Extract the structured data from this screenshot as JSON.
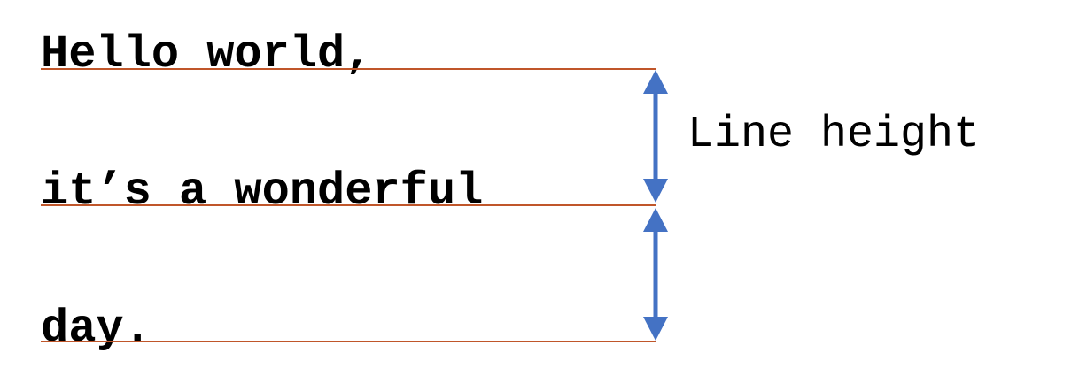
{
  "text_lines": [
    "Hello world,",
    "it’s a wonderful",
    "day."
  ],
  "measure_label": "Line height",
  "colors": {
    "text": "#000000",
    "baseline": "#c0562a",
    "arrow": "#4472c4",
    "background": "#ffffff"
  }
}
